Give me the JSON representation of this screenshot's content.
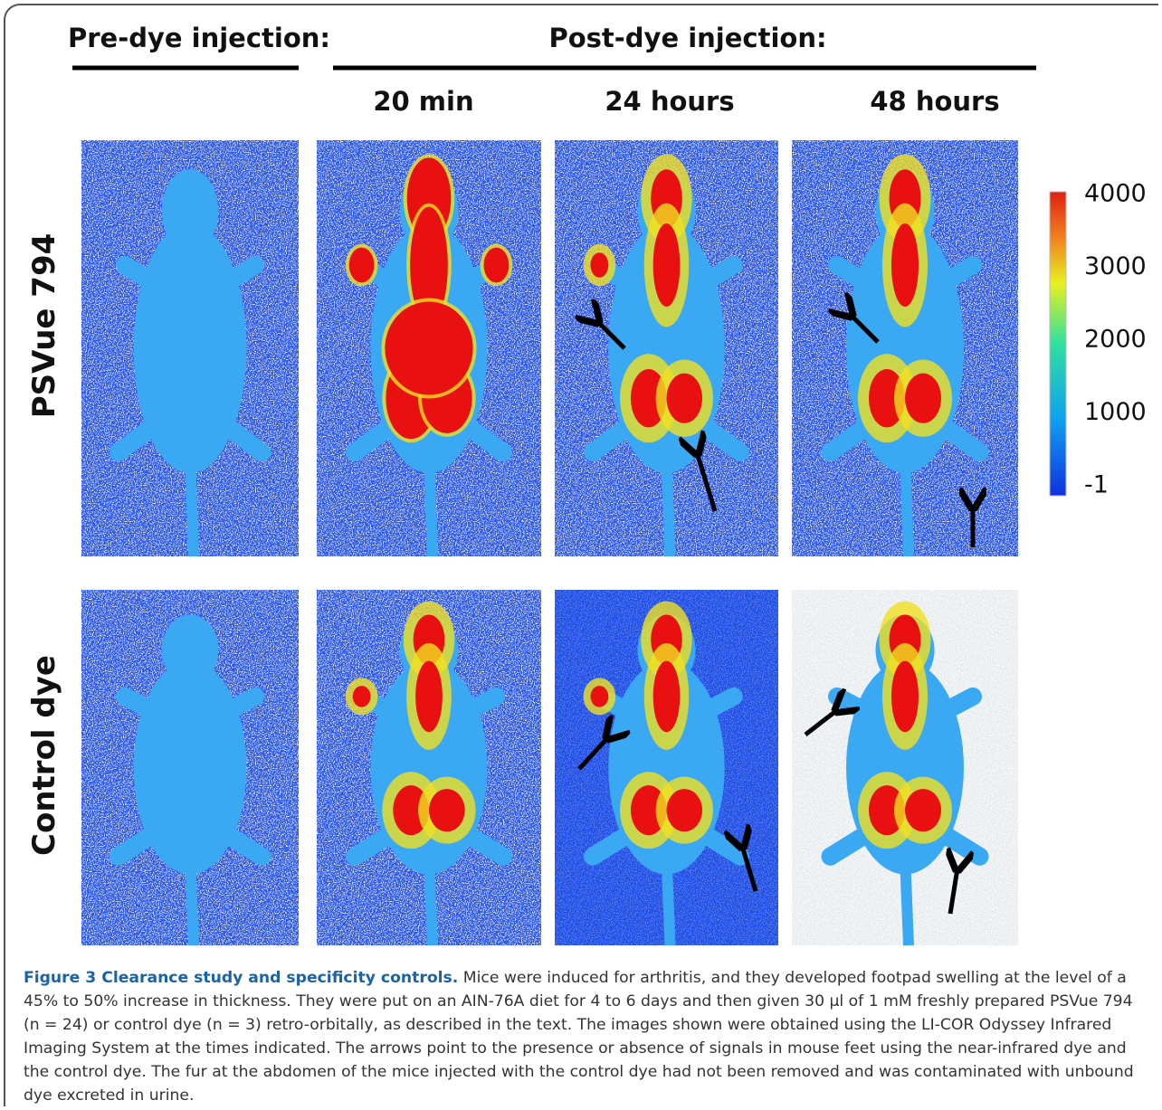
{
  "header": {
    "pre": "Pre-dye injection:",
    "post": "Post-dye injection:"
  },
  "columns": [
    "20 min",
    "24 hours",
    "48 hours"
  ],
  "rows": [
    "PSVue 794",
    "Control dye"
  ],
  "colorbar": {
    "ticks": [
      4000,
      3000,
      2000,
      1000,
      -1
    ]
  },
  "caption": {
    "title": "Figure 3 Clearance study and specificity controls.",
    "text": "Mice were induced for arthritis, and they developed footpad swelling at the level of a 45% to 50% increase in thickness. They were put on an AIN-76A diet for 4 to 6 days and then given 30 μl of 1 mM freshly prepared PSVue 794 (n = 24) or control dye (n = 3) retro-orbitally, as described in the text. The images shown were obtained using the LI-COR Odyssey Infrared Imaging System at the times indicated. The arrows point to the presence or absence of signals in mouse feet using the near-infrared dye and the control dye. The fur at the abdomen of the mice injected with the control dye had not been removed and was contaminated with unbound dye excreted in urine."
  }
}
